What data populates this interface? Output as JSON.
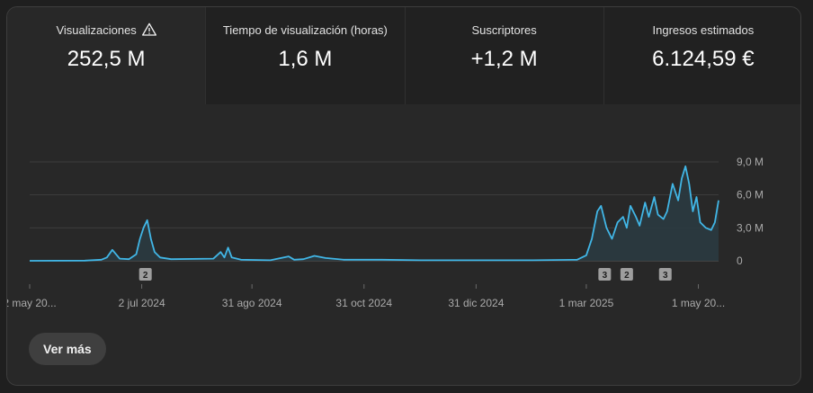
{
  "metrics": [
    {
      "label": "Visualizaciones",
      "value": "252,5 M",
      "warning_icon": "warning-triangle-icon"
    },
    {
      "label": "Tiempo de visualización (horas)",
      "value": "1,6 M"
    },
    {
      "label": "Suscriptores",
      "value": "+1,2 M"
    },
    {
      "label": "Ingresos estimados",
      "value": "6.124,59 €"
    }
  ],
  "chart_data": {
    "type": "area",
    "series": [
      {
        "color": "#41b6e6",
        "fill": "#2a3a40",
        "points": [
          [
            "2024-05-02",
            0.0
          ],
          [
            "2024-06-01",
            0.02
          ],
          [
            "2024-06-10",
            0.1
          ],
          [
            "2024-06-13",
            0.3
          ],
          [
            "2024-06-16",
            1.0
          ],
          [
            "2024-06-18",
            0.6
          ],
          [
            "2024-06-20",
            0.2
          ],
          [
            "2024-06-25",
            0.15
          ],
          [
            "2024-06-29",
            0.6
          ],
          [
            "2024-07-01",
            2.0
          ],
          [
            "2024-07-03",
            3.0
          ],
          [
            "2024-07-05",
            3.7
          ],
          [
            "2024-07-07",
            2.0
          ],
          [
            "2024-07-09",
            0.8
          ],
          [
            "2024-07-12",
            0.3
          ],
          [
            "2024-07-18",
            0.15
          ],
          [
            "2024-08-10",
            0.2
          ],
          [
            "2024-08-14",
            0.8
          ],
          [
            "2024-08-16",
            0.3
          ],
          [
            "2024-08-18",
            1.2
          ],
          [
            "2024-08-20",
            0.3
          ],
          [
            "2024-08-25",
            0.1
          ],
          [
            "2024-09-10",
            0.05
          ],
          [
            "2024-09-20",
            0.4
          ],
          [
            "2024-09-23",
            0.1
          ],
          [
            "2024-09-28",
            0.15
          ],
          [
            "2024-10-04",
            0.45
          ],
          [
            "2024-10-10",
            0.25
          ],
          [
            "2024-10-20",
            0.1
          ],
          [
            "2024-11-10",
            0.1
          ],
          [
            "2024-12-01",
            0.05
          ],
          [
            "2025-01-31",
            0.05
          ],
          [
            "2025-02-24",
            0.1
          ],
          [
            "2025-03-01",
            0.5
          ],
          [
            "2025-03-04",
            2.0
          ],
          [
            "2025-03-07",
            4.5
          ],
          [
            "2025-03-09",
            5.0
          ],
          [
            "2025-03-12",
            3.0
          ],
          [
            "2025-03-15",
            2.0
          ],
          [
            "2025-03-18",
            3.5
          ],
          [
            "2025-03-21",
            4.0
          ],
          [
            "2025-03-23",
            3.0
          ],
          [
            "2025-03-25",
            5.0
          ],
          [
            "2025-03-28",
            4.0
          ],
          [
            "2025-03-30",
            3.2
          ],
          [
            "2025-04-02",
            5.3
          ],
          [
            "2025-04-04",
            4.0
          ],
          [
            "2025-04-07",
            5.8
          ],
          [
            "2025-04-09",
            4.2
          ],
          [
            "2025-04-12",
            3.8
          ],
          [
            "2025-04-14",
            4.5
          ],
          [
            "2025-04-17",
            7.0
          ],
          [
            "2025-04-20",
            5.5
          ],
          [
            "2025-04-22",
            7.5
          ],
          [
            "2025-04-24",
            8.6
          ],
          [
            "2025-04-26",
            7.0
          ],
          [
            "2025-04-28",
            4.5
          ],
          [
            "2025-04-30",
            5.8
          ],
          [
            "2025-05-02",
            3.5
          ],
          [
            "2025-05-05",
            3.0
          ],
          [
            "2025-05-08",
            2.8
          ],
          [
            "2025-05-10",
            3.5
          ],
          [
            "2025-05-12",
            5.5
          ]
        ]
      }
    ],
    "x_range": [
      "2024-05-02",
      "2025-05-12"
    ],
    "x_ticks": [
      {
        "date": "2024-05-02",
        "label": "2 may 20..."
      },
      {
        "date": "2024-07-02",
        "label": "2 jul 2024"
      },
      {
        "date": "2024-08-31",
        "label": "31 ago 2024"
      },
      {
        "date": "2024-10-31",
        "label": "31 oct 2024"
      },
      {
        "date": "2024-12-31",
        "label": "31 dic 2024"
      },
      {
        "date": "2025-03-01",
        "label": "1 mar 2025"
      },
      {
        "date": "2025-05-01",
        "label": "1 may 20..."
      }
    ],
    "y_range": [
      0,
      9.0
    ],
    "y_ticks": [
      {
        "value": 0,
        "label": "0"
      },
      {
        "value": 3.0,
        "label": "3,0 M"
      },
      {
        "value": 6.0,
        "label": "6,0 M"
      },
      {
        "value": 9.0,
        "label": "9,0 M"
      }
    ],
    "grid": true,
    "markers": [
      {
        "date": "2024-07-04",
        "label": "2"
      },
      {
        "date": "2025-03-11",
        "label": "3"
      },
      {
        "date": "2025-03-23",
        "label": "2"
      },
      {
        "date": "2025-04-13",
        "label": "3"
      }
    ]
  },
  "actions": {
    "more_label": "Ver más"
  }
}
